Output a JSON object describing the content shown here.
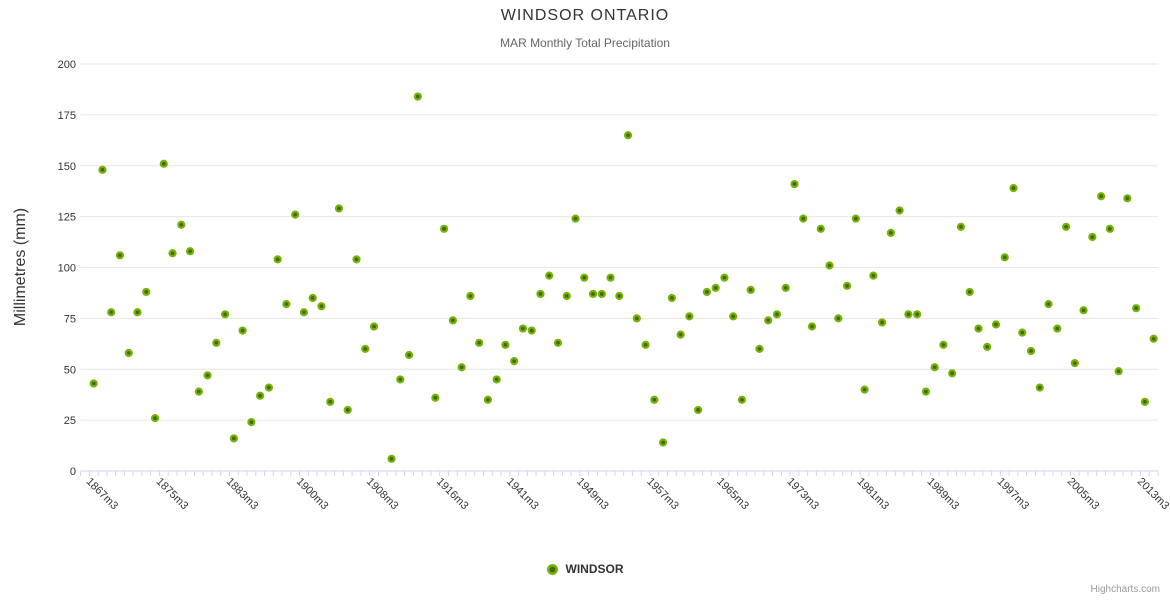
{
  "chart": {
    "title": "WINDSOR ONTARIO",
    "subtitle": "MAR Monthly Total Precipitation",
    "legend": {
      "series_name": "WINDSOR"
    },
    "credit": "Highcharts.com"
  },
  "chart_data": {
    "type": "scatter",
    "title": "WINDSOR ONTARIO",
    "subtitle": "MAR Monthly Total Precipitation",
    "series_name": "WINDSOR",
    "xlabel": "",
    "ylabel": "Millimetres (mm)",
    "ylim": [
      0,
      200
    ],
    "y_ticks": [
      0,
      25,
      50,
      75,
      100,
      125,
      150,
      175,
      200
    ],
    "grid": "horizontal",
    "legend_position": "bottom-center",
    "n_categories": 122,
    "x_tick_labels": [
      {
        "i": 0,
        "label": "1867m3"
      },
      {
        "i": 8,
        "label": "1875m3"
      },
      {
        "i": 16,
        "label": "1883m3"
      },
      {
        "i": 24,
        "label": "1900m3"
      },
      {
        "i": 32,
        "label": "1908m3"
      },
      {
        "i": 40,
        "label": "1916m3"
      },
      {
        "i": 48,
        "label": "1941m3"
      },
      {
        "i": 56,
        "label": "1949m3"
      },
      {
        "i": 64,
        "label": "1957m3"
      },
      {
        "i": 72,
        "label": "1965m3"
      },
      {
        "i": 80,
        "label": "1973m3"
      },
      {
        "i": 88,
        "label": "1981m3"
      },
      {
        "i": 96,
        "label": "1989m3"
      },
      {
        "i": 104,
        "label": "1997m3"
      },
      {
        "i": 112,
        "label": "2005m3"
      },
      {
        "i": 120,
        "label": "2013m3"
      }
    ],
    "points": [
      [
        0,
        43
      ],
      [
        1,
        148
      ],
      [
        2,
        78
      ],
      [
        3,
        106
      ],
      [
        4,
        58
      ],
      [
        5,
        78
      ],
      [
        6,
        88
      ],
      [
        7,
        26
      ],
      [
        8,
        151
      ],
      [
        9,
        107
      ],
      [
        10,
        121
      ],
      [
        11,
        108
      ],
      [
        12,
        39
      ],
      [
        13,
        47
      ],
      [
        14,
        63
      ],
      [
        15,
        77
      ],
      [
        16,
        16
      ],
      [
        17,
        69
      ],
      [
        18,
        24
      ],
      [
        19,
        37
      ],
      [
        20,
        41
      ],
      [
        21,
        104
      ],
      [
        22,
        82
      ],
      [
        23,
        126
      ],
      [
        24,
        78
      ],
      [
        25,
        85
      ],
      [
        26,
        81
      ],
      [
        27,
        34
      ],
      [
        28,
        129
      ],
      [
        29,
        30
      ],
      [
        30,
        104
      ],
      [
        31,
        60
      ],
      [
        32,
        71
      ],
      [
        34,
        6
      ],
      [
        35,
        45
      ],
      [
        36,
        57
      ],
      [
        37,
        184
      ],
      [
        39,
        36
      ],
      [
        40,
        119
      ],
      [
        41,
        74
      ],
      [
        42,
        51
      ],
      [
        43,
        86
      ],
      [
        44,
        63
      ],
      [
        45,
        35
      ],
      [
        46,
        45
      ],
      [
        47,
        62
      ],
      [
        48,
        54
      ],
      [
        49,
        70
      ],
      [
        50,
        69
      ],
      [
        51,
        87
      ],
      [
        52,
        96
      ],
      [
        53,
        63
      ],
      [
        54,
        86
      ],
      [
        55,
        124
      ],
      [
        56,
        95
      ],
      [
        57,
        87
      ],
      [
        58,
        87
      ],
      [
        59,
        95
      ],
      [
        60,
        86
      ],
      [
        61,
        165
      ],
      [
        62,
        75
      ],
      [
        63,
        62
      ],
      [
        64,
        35
      ],
      [
        65,
        14
      ],
      [
        66,
        85
      ],
      [
        67,
        67
      ],
      [
        68,
        76
      ],
      [
        69,
        30
      ],
      [
        70,
        88
      ],
      [
        71,
        90
      ],
      [
        72,
        95
      ],
      [
        73,
        76
      ],
      [
        74,
        35
      ],
      [
        75,
        89
      ],
      [
        76,
        60
      ],
      [
        77,
        74
      ],
      [
        78,
        77
      ],
      [
        79,
        90
      ],
      [
        80,
        141
      ],
      [
        81,
        124
      ],
      [
        82,
        71
      ],
      [
        83,
        119
      ],
      [
        84,
        101
      ],
      [
        85,
        75
      ],
      [
        86,
        91
      ],
      [
        87,
        124
      ],
      [
        88,
        40
      ],
      [
        89,
        96
      ],
      [
        90,
        73
      ],
      [
        91,
        117
      ],
      [
        92,
        128
      ],
      [
        93,
        77
      ],
      [
        94,
        77
      ],
      [
        95,
        39
      ],
      [
        96,
        51
      ],
      [
        97,
        62
      ],
      [
        98,
        48
      ],
      [
        99,
        120
      ],
      [
        100,
        88
      ],
      [
        101,
        70
      ],
      [
        102,
        61
      ],
      [
        103,
        72
      ],
      [
        104,
        105
      ],
      [
        105,
        139
      ],
      [
        106,
        68
      ],
      [
        107,
        59
      ],
      [
        108,
        41
      ],
      [
        109,
        82
      ],
      [
        110,
        70
      ],
      [
        111,
        120
      ],
      [
        112,
        53
      ],
      [
        113,
        79
      ],
      [
        114,
        115
      ],
      [
        115,
        135
      ],
      [
        116,
        119
      ],
      [
        117,
        49
      ],
      [
        118,
        134
      ],
      [
        119,
        80
      ],
      [
        120,
        34
      ],
      [
        121,
        65
      ]
    ],
    "colors": {
      "marker_outer": "#77b208",
      "marker_inner": "#406c04",
      "grid": "#e6e6e6",
      "axis": "#ccd6eb",
      "tick_label": "#333333",
      "axis_title": "#333333"
    }
  }
}
